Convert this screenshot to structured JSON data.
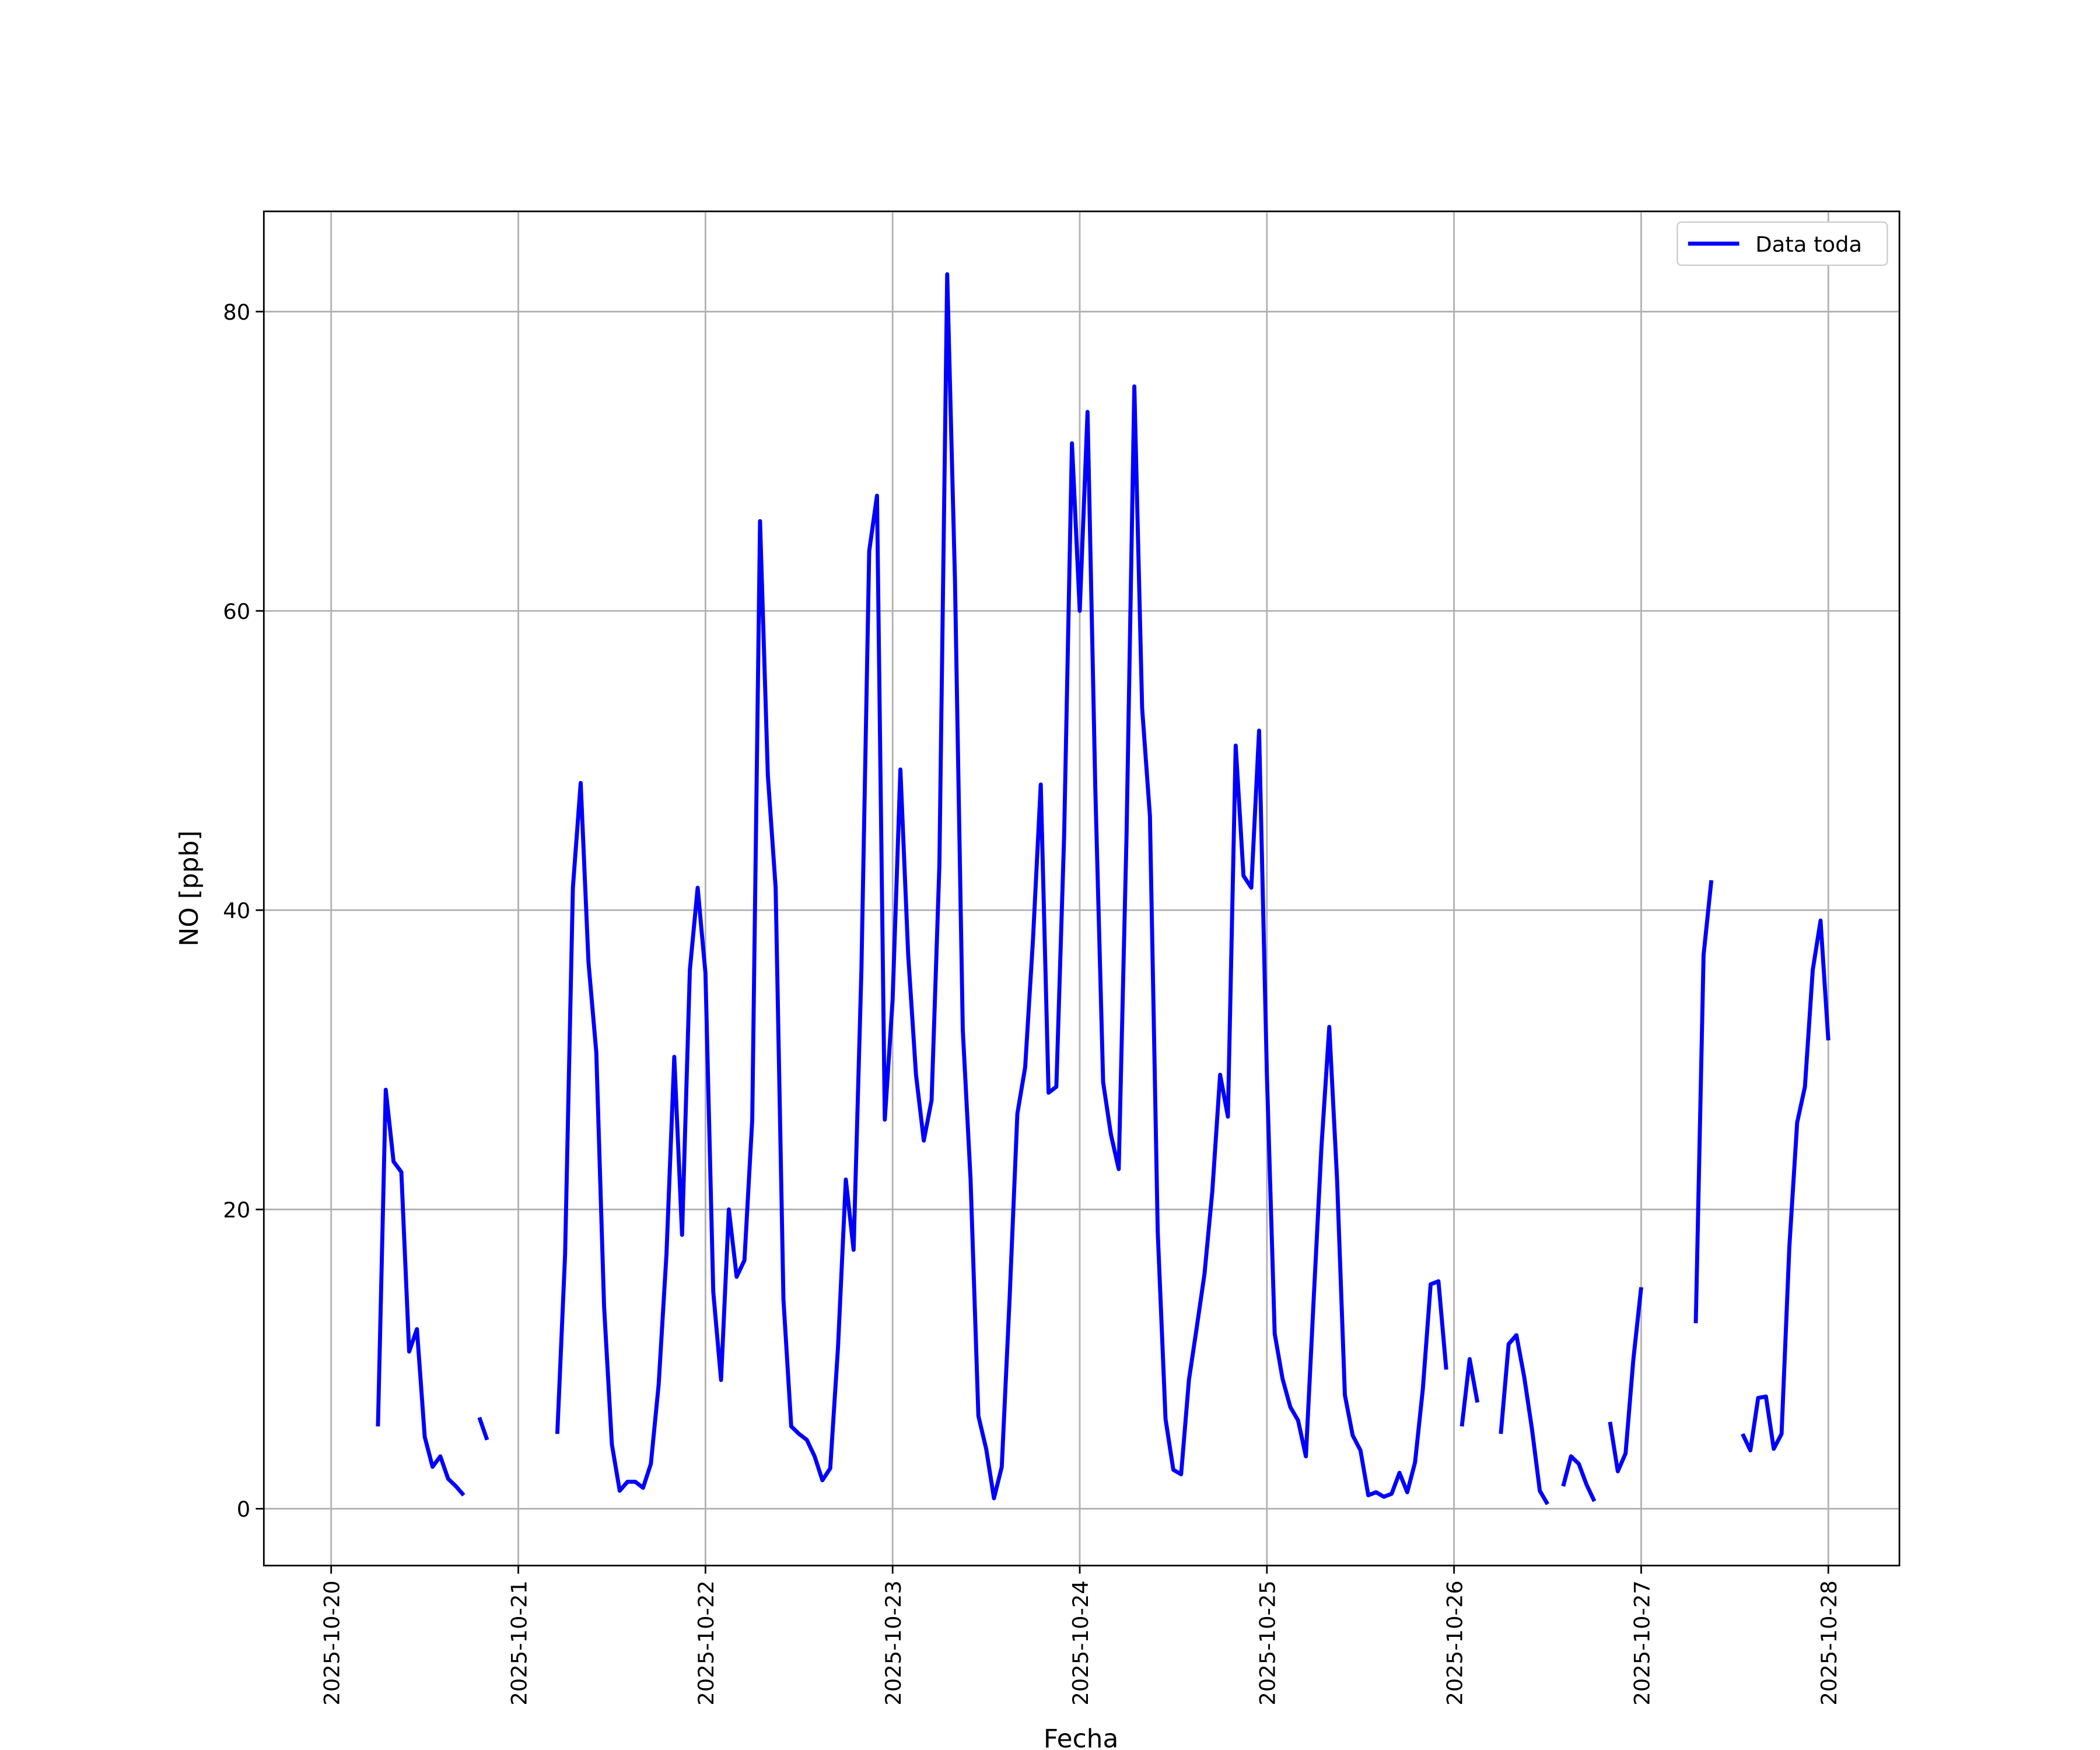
{
  "chart_data": {
    "type": "line",
    "xlabel": "Fecha",
    "ylabel": "NO [ppb]",
    "x": [
      "2025-10-20 06:00",
      "2025-10-20 07:00",
      "2025-10-20 08:00",
      "2025-10-20 09:00",
      "2025-10-20 10:00",
      "2025-10-20 11:00",
      "2025-10-20 12:00",
      "2025-10-20 13:00",
      "2025-10-20 14:00",
      "2025-10-20 15:00",
      "2025-10-20 16:00",
      "2025-10-20 17:00",
      "2025-10-20 18:00",
      "2025-10-20 19:00",
      "2025-10-20 20:00",
      "2025-10-20 21:00",
      "2025-10-20 22:00",
      "2025-10-20 23:00",
      "2025-10-21 00:00",
      "2025-10-21 01:00",
      "2025-10-21 02:00",
      "2025-10-21 03:00",
      "2025-10-21 04:00",
      "2025-10-21 05:00",
      "2025-10-21 06:00",
      "2025-10-21 07:00",
      "2025-10-21 08:00",
      "2025-10-21 09:00",
      "2025-10-21 10:00",
      "2025-10-21 11:00",
      "2025-10-21 12:00",
      "2025-10-21 13:00",
      "2025-10-21 14:00",
      "2025-10-21 15:00",
      "2025-10-21 16:00",
      "2025-10-21 17:00",
      "2025-10-21 18:00",
      "2025-10-21 19:00",
      "2025-10-21 20:00",
      "2025-10-21 21:00",
      "2025-10-21 22:00",
      "2025-10-21 23:00",
      "2025-10-22 00:00",
      "2025-10-22 01:00",
      "2025-10-22 02:00",
      "2025-10-22 03:00",
      "2025-10-22 04:00",
      "2025-10-22 05:00",
      "2025-10-22 06:00",
      "2025-10-22 07:00",
      "2025-10-22 08:00",
      "2025-10-22 09:00",
      "2025-10-22 10:00",
      "2025-10-22 11:00",
      "2025-10-22 12:00",
      "2025-10-22 13:00",
      "2025-10-22 14:00",
      "2025-10-22 15:00",
      "2025-10-22 16:00",
      "2025-10-22 17:00",
      "2025-10-22 18:00",
      "2025-10-22 19:00",
      "2025-10-22 20:00",
      "2025-10-22 21:00",
      "2025-10-22 22:00",
      "2025-10-22 23:00",
      "2025-10-23 00:00",
      "2025-10-23 01:00",
      "2025-10-23 02:00",
      "2025-10-23 03:00",
      "2025-10-23 04:00",
      "2025-10-23 05:00",
      "2025-10-23 06:00",
      "2025-10-23 07:00",
      "2025-10-23 08:00",
      "2025-10-23 09:00",
      "2025-10-23 10:00",
      "2025-10-23 11:00",
      "2025-10-23 12:00",
      "2025-10-23 13:00",
      "2025-10-23 14:00",
      "2025-10-23 15:00",
      "2025-10-23 16:00",
      "2025-10-23 17:00",
      "2025-10-23 18:00",
      "2025-10-23 19:00",
      "2025-10-23 20:00",
      "2025-10-23 21:00",
      "2025-10-23 22:00",
      "2025-10-23 23:00",
      "2025-10-24 00:00",
      "2025-10-24 01:00",
      "2025-10-24 02:00",
      "2025-10-24 03:00",
      "2025-10-24 04:00",
      "2025-10-24 05:00",
      "2025-10-24 06:00",
      "2025-10-24 07:00",
      "2025-10-24 08:00",
      "2025-10-24 09:00",
      "2025-10-24 10:00",
      "2025-10-24 11:00",
      "2025-10-24 12:00",
      "2025-10-24 13:00",
      "2025-10-24 14:00",
      "2025-10-24 15:00",
      "2025-10-24 16:00",
      "2025-10-24 17:00",
      "2025-10-24 18:00",
      "2025-10-24 19:00",
      "2025-10-24 20:00",
      "2025-10-24 21:00",
      "2025-10-24 22:00",
      "2025-10-24 23:00",
      "2025-10-25 00:00",
      "2025-10-25 01:00",
      "2025-10-25 02:00",
      "2025-10-25 03:00",
      "2025-10-25 04:00",
      "2025-10-25 05:00",
      "2025-10-25 06:00",
      "2025-10-25 07:00",
      "2025-10-25 08:00",
      "2025-10-25 09:00",
      "2025-10-25 10:00",
      "2025-10-25 11:00",
      "2025-10-25 12:00",
      "2025-10-25 13:00",
      "2025-10-25 14:00",
      "2025-10-25 15:00",
      "2025-10-25 16:00",
      "2025-10-25 17:00",
      "2025-10-25 18:00",
      "2025-10-25 19:00",
      "2025-10-25 20:00",
      "2025-10-25 21:00",
      "2025-10-25 22:00",
      "2025-10-25 23:00",
      "2025-10-26 00:00",
      "2025-10-26 01:00",
      "2025-10-26 02:00",
      "2025-10-26 03:00",
      "2025-10-26 04:00",
      "2025-10-26 05:00",
      "2025-10-26 06:00",
      "2025-10-26 07:00",
      "2025-10-26 08:00",
      "2025-10-26 09:00",
      "2025-10-26 10:00",
      "2025-10-26 11:00",
      "2025-10-26 12:00",
      "2025-10-26 13:00",
      "2025-10-26 14:00",
      "2025-10-26 15:00",
      "2025-10-26 16:00",
      "2025-10-26 17:00",
      "2025-10-26 18:00",
      "2025-10-26 19:00",
      "2025-10-26 20:00",
      "2025-10-26 21:00",
      "2025-10-26 22:00",
      "2025-10-26 23:00",
      "2025-10-27 00:00",
      "2025-10-27 01:00",
      "2025-10-27 02:00",
      "2025-10-27 03:00",
      "2025-10-27 04:00",
      "2025-10-27 05:00",
      "2025-10-27 06:00",
      "2025-10-27 07:00",
      "2025-10-27 08:00",
      "2025-10-27 09:00",
      "2025-10-27 10:00",
      "2025-10-27 11:00",
      "2025-10-27 12:00",
      "2025-10-27 13:00",
      "2025-10-27 14:00",
      "2025-10-27 15:00",
      "2025-10-27 16:00",
      "2025-10-27 17:00",
      "2025-10-27 18:00",
      "2025-10-27 19:00",
      "2025-10-27 20:00",
      "2025-10-27 21:00",
      "2025-10-27 22:00",
      "2025-10-27 23:00",
      "2025-10-28 00:00"
    ],
    "series": [
      {
        "name": "Data toda",
        "color": "#0000ff",
        "values": [
          5.5,
          28,
          23.2,
          22.5,
          10.5,
          12,
          4.8,
          2.8,
          3.5,
          2.0,
          1.5,
          0.9,
          null,
          6.1,
          4.6,
          null,
          null,
          null,
          null,
          null,
          null,
          null,
          null,
          5.0,
          17,
          41.5,
          48.5,
          36.5,
          30.5,
          13.5,
          4.3,
          1.2,
          1.8,
          1.8,
          1.4,
          3.0,
          8.3,
          17,
          30.2,
          18.3,
          36,
          41.5,
          35.8,
          14.5,
          8.6,
          20,
          15.5,
          16.6,
          26,
          66,
          49,
          41.5,
          14,
          5.5,
          5.0,
          4.6,
          3.5,
          1.9,
          2.7,
          10.8,
          22,
          17.3,
          36,
          64,
          67.7,
          26,
          34,
          49.4,
          37,
          29,
          24.6,
          27.3,
          43,
          82.5,
          62,
          32,
          22,
          6.2,
          4.0,
          0.7,
          2.8,
          14,
          26.4,
          29.5,
          38,
          48.4,
          27.8,
          28.2,
          45,
          71.2,
          60,
          73.3,
          48,
          28.5,
          25,
          22.7,
          45,
          75,
          53.5,
          46.3,
          18.5,
          6,
          2.6,
          2.3,
          8.6,
          12.1,
          15.7,
          21.2,
          29,
          26.2,
          51,
          42.3,
          41.5,
          52,
          29,
          11.7,
          8.7,
          6.8,
          5.9,
          3.5,
          14,
          24.2,
          32.2,
          22,
          7.6,
          4.9,
          3.9,
          0.9,
          1.1,
          0.8,
          1.0,
          2.4,
          1.1,
          3.1,
          8,
          15,
          15.2,
          9.3,
          null,
          5.5,
          10,
          7.1,
          null,
          null,
          5.0,
          11,
          11.6,
          8.8,
          5.3,
          1.2,
          0.3,
          null,
          1.5,
          3.5,
          3.0,
          1.6,
          0.5,
          null,
          5.8,
          2.5,
          3.7,
          10,
          14.8,
          null,
          null,
          null,
          null,
          null,
          null,
          12.4,
          37,
          42,
          null,
          null,
          null,
          5.0,
          3.9,
          7.4,
          7.5,
          4.0,
          5.0,
          17.5,
          25.8,
          28.2,
          36,
          39.3,
          31.3
        ]
      }
    ],
    "xlim": [
      "2025-10-19 15:22",
      "2025-10-28 09:07"
    ],
    "xticks": [
      "2025-10-20",
      "2025-10-21",
      "2025-10-22",
      "2025-10-23",
      "2025-10-24",
      "2025-10-25",
      "2025-10-26",
      "2025-10-27",
      "2025-10-28"
    ],
    "ylim": [
      -3.8,
      86.7
    ],
    "yticks": [
      0,
      20,
      40,
      60,
      80
    ],
    "grid": true,
    "legend": "upper right"
  }
}
